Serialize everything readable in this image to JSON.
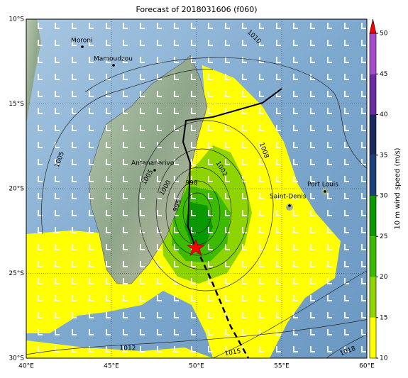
{
  "map": {
    "title": "Forecast of 2018031606 (f060)",
    "lon_ticks": [
      {
        "value": 40,
        "label": "40°E"
      },
      {
        "value": 45,
        "label": "45°E"
      },
      {
        "value": 50,
        "label": "50°E"
      },
      {
        "value": 55,
        "label": "55°E"
      },
      {
        "value": 60,
        "label": "60°E"
      }
    ],
    "lat_ticks": [
      {
        "value": -10,
        "label": "10°S"
      },
      {
        "value": -15,
        "label": "15°S"
      },
      {
        "value": -20,
        "label": "20°S"
      },
      {
        "value": -25,
        "label": "25°S"
      },
      {
        "value": -30,
        "label": "30°S"
      }
    ],
    "lonlim": [
      40,
      60
    ],
    "latlim": [
      -10,
      -30
    ],
    "colorbar": {
      "label": "10 m wind speed (m/s)",
      "ticks": [
        10,
        15,
        20,
        25,
        30,
        35,
        40,
        45,
        50
      ],
      "colors": [
        "#ffff00",
        "#8ed400",
        "#3cbb00",
        "#0a9900",
        "#1b3f7a",
        "#1a2a5e",
        "#6a2aa0",
        "#a94ccc"
      ],
      "extend_color": "#ff0000"
    },
    "places": [
      "Moroni",
      "Mamoudzou",
      "Antananarivo",
      "Saint-Denis",
      "Port Louis"
    ],
    "contour_labels": [
      "1010",
      "1005",
      "1008",
      "1002",
      "1000",
      "998",
      "995",
      "1005",
      "1012",
      "1015",
      "1018"
    ]
  }
}
